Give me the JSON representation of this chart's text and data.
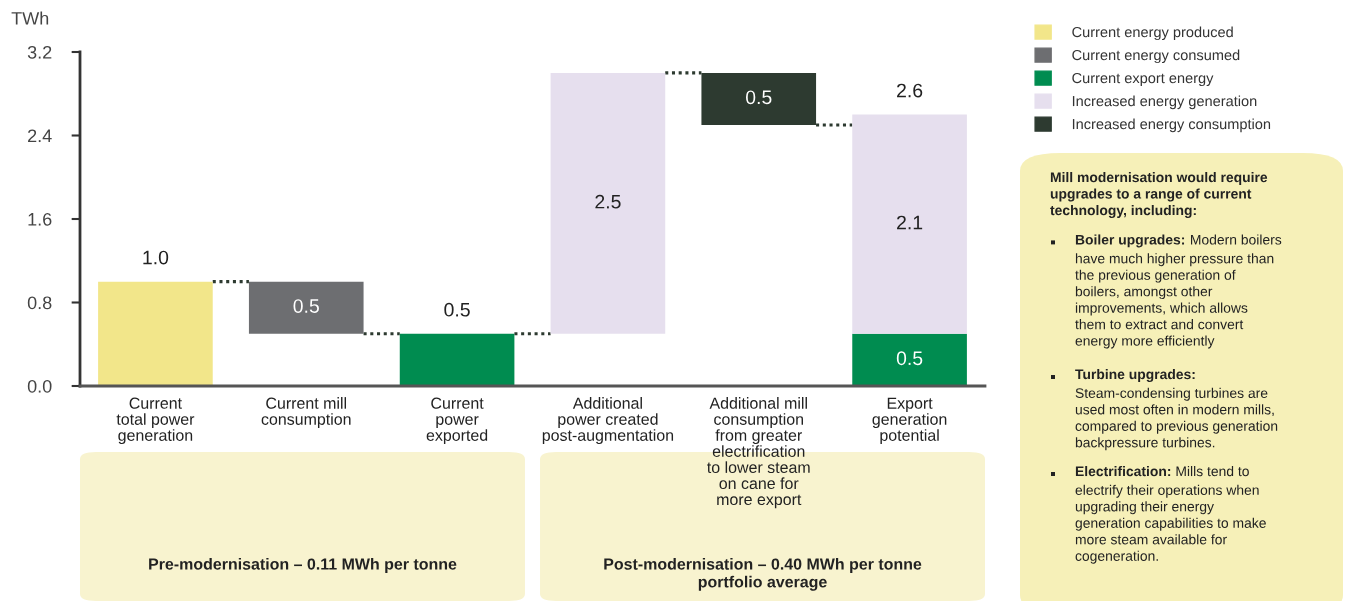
{
  "chart_data": {
    "type": "bar",
    "ylabel": "TWh",
    "categories": [
      "Current\ntotal power\ngeneration",
      "Current mill\nconsumption",
      "Current\npower\nexported",
      "Additional\npower created\npost-augmentation",
      "Additional mill\nconsumption\nfrom greater\nelectrification\nto lower steam\non cane for\nmore export",
      "Export\ngeneration\npotential"
    ],
    "series": [
      {
        "name": "Current energy produced",
        "color": "#f2e68a",
        "values": [
          1.0,
          null,
          null,
          null,
          null,
          null
        ],
        "base": [
          0,
          null,
          null,
          null,
          null,
          null
        ],
        "value_labels": [
          "1.0",
          null,
          null,
          null,
          null,
          null
        ]
      },
      {
        "name": "Current energy consumed",
        "color": "#6d6e71",
        "values": [
          null,
          0.5,
          null,
          null,
          null,
          null
        ],
        "base": [
          null,
          0.5,
          null,
          null,
          null,
          null
        ],
        "value_labels": [
          null,
          "0.5",
          null,
          null,
          null,
          null
        ]
      },
      {
        "name": "Current export energy",
        "color": "#008c50",
        "values": [
          null,
          null,
          0.5,
          null,
          null,
          0.5
        ],
        "base": [
          null,
          null,
          0,
          null,
          null,
          0
        ],
        "value_labels": [
          null,
          null,
          "0.5",
          null,
          null,
          "0.5"
        ]
      },
      {
        "name": "Increased energy generation",
        "color": "#e6dfee",
        "values": [
          null,
          null,
          null,
          2.5,
          null,
          2.1
        ],
        "base": [
          null,
          null,
          null,
          0.5,
          null,
          0.5
        ],
        "value_labels": [
          null,
          null,
          null,
          "2.5",
          null,
          "2.1"
        ]
      },
      {
        "name": "Increased energy consumption",
        "color": "#2d3a30",
        "values": [
          null,
          null,
          null,
          null,
          0.5,
          null
        ],
        "base": [
          null,
          null,
          null,
          null,
          2.5,
          null
        ],
        "value_labels": [
          null,
          null,
          null,
          null,
          "0.5",
          null
        ]
      }
    ],
    "totals": [
      null,
      null,
      null,
      null,
      null,
      "2.6"
    ],
    "ylim": [
      0,
      3.2
    ],
    "yticks": [
      {
        "value": 0,
        "label": "0.0"
      },
      0.8,
      1.6,
      2.4,
      3.2
    ],
    "legend": "top right",
    "annotations": [
      "Pre-modernisation – 0.11 MWh per tonne",
      "Post-modernisation – 0.40 MWh per tonne\nportfolio average",
      "Mill modernisation would require\nupgrades to a range of current\ntechnology, including:",
      "Boiler upgrades: Modern boilers\nhave much higher pressure than\nthe previous generation of\nboilers, amongst other\nimprovements, which allows\nthem to extract and convert\nenergy more efficiently",
      "Turbine upgrades:\nSteam-condensing turbines are\nused most often in modern mills,\ncompared to previous generation\nbackpressure turbines.",
      "Electrification: Mills tend to\nelectrify their operations when\nupgrading their energy\ngeneration capabilities to make\nmore steam available for\ncogeneration."
    ]
  }
}
